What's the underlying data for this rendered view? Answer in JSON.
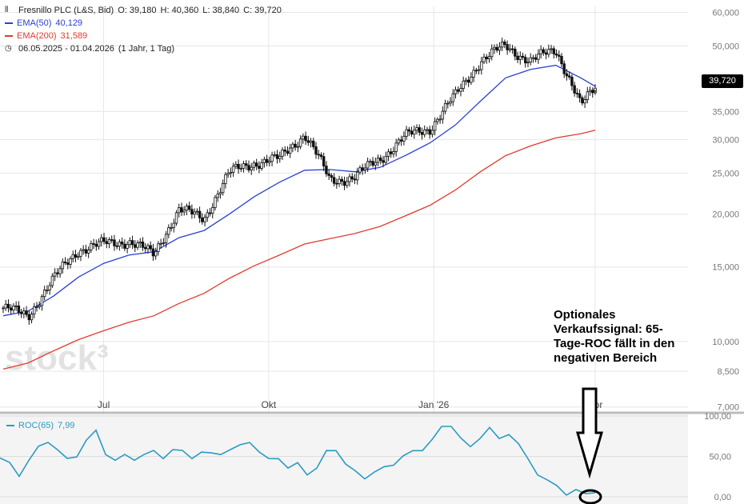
{
  "legend": {
    "instrument": "Fresnillo PLC (L&S, Bid)",
    "open": "O: 39,180",
    "high": "H: 40,360",
    "low": "L: 38,840",
    "close": "C: 39,720",
    "ema50_label": "EMA(50)",
    "ema50_value": "40,129",
    "ema200_label": "EMA(200)",
    "ema200_value": "31,589",
    "date_range": "06.05.2025 - 01.04.2026",
    "period": "(1 Jahr, 1 Tag)",
    "clock_icon": "clock-icon"
  },
  "watermark": "stock³",
  "price_tag": "39,720",
  "roc_legend": {
    "label": "ROC(65)",
    "value": "7,99"
  },
  "annotation": "Optionales Verkaufssignal: 65-Tage-ROC fällt in den negativen Bereich",
  "colors": {
    "candle": "#111111",
    "ema50": "#2a3fd6",
    "ema200": "#e23b2e",
    "roc": "#2a9bc0",
    "grid": "#e6e6e6",
    "axis_text": "#777777"
  },
  "chart_data": [
    {
      "type": "candlestick",
      "title": "Fresnillo PLC (L&S, Bid)",
      "x_range": [
        "2025-05-06",
        "2026-04-01"
      ],
      "y_scale": "log",
      "y_ticks": [
        "7,000",
        "8,500",
        "10,000",
        "15,000",
        "20,000",
        "25,000",
        "30,000",
        "35,000",
        "50,000",
        "60,000"
      ],
      "x_ticks": [
        "Jul",
        "Okt",
        "Jan '26",
        "Apr"
      ],
      "ohlc_last": {
        "open": 39.18,
        "high": 40.36,
        "low": 38.84,
        "close": 39.72
      },
      "close_approx": {
        "dates": [
          "2025-05-06",
          "2025-05-20",
          "2025-06-03",
          "2025-06-17",
          "2025-07-01",
          "2025-07-15",
          "2025-07-29",
          "2025-08-12",
          "2025-08-26",
          "2025-09-09",
          "2025-09-23",
          "2025-10-07",
          "2025-10-21",
          "2025-11-04",
          "2025-11-18",
          "2025-12-02",
          "2025-12-16",
          "2025-12-30",
          "2026-01-13",
          "2026-01-27",
          "2026-02-10",
          "2026-02-24",
          "2026-03-10",
          "2026-03-24",
          "2026-04-01"
        ],
        "values": [
          12.0,
          11.5,
          14.0,
          16.5,
          17.0,
          17.3,
          16.0,
          20.5,
          19.5,
          25.0,
          26.5,
          27.0,
          31.0,
          24.0,
          24.5,
          27.0,
          30.5,
          32.0,
          38.0,
          46.0,
          50.0,
          46.0,
          49.0,
          36.0,
          39.7
        ]
      },
      "series": [
        {
          "name": "EMA(50)",
          "last": 40.129,
          "values": [
            11.5,
            11.8,
            12.8,
            14.2,
            15.3,
            16.0,
            16.3,
            17.6,
            18.3,
            20.0,
            22.0,
            23.8,
            25.4,
            25.5,
            25.2,
            25.8,
            27.5,
            29.5,
            32.5,
            37.0,
            42.0,
            44.0,
            45.0,
            42.0,
            40.13
          ]
        },
        {
          "name": "EMA(200)",
          "last": 31.589,
          "values": [
            8.6,
            8.9,
            9.5,
            10.1,
            10.6,
            11.1,
            11.5,
            12.3,
            13.0,
            14.1,
            15.1,
            16.0,
            17.0,
            17.5,
            18.0,
            18.7,
            19.8,
            21.0,
            22.8,
            25.2,
            27.5,
            29.0,
            30.3,
            31.0,
            31.59
          ]
        }
      ]
    },
    {
      "type": "line",
      "title": "ROC(65)",
      "y_ticks": [
        "0,00",
        "50,00",
        "100,00"
      ],
      "series": [
        {
          "name": "ROC(65)",
          "last": 7.99,
          "values": [
            48,
            40,
            28,
            45,
            60,
            70,
            58,
            45,
            52,
            70,
            80,
            55,
            45,
            50,
            48,
            52,
            55,
            50,
            58,
            55,
            50,
            55,
            52,
            55,
            58,
            62,
            70,
            55,
            45,
            50,
            35,
            40,
            30,
            35,
            55,
            60,
            40,
            30,
            25,
            30,
            35,
            42,
            50,
            55,
            60,
            70,
            85,
            90,
            72,
            60,
            75,
            85,
            70,
            80,
            65,
            45,
            30,
            20,
            12,
            5,
            8,
            2,
            7.99
          ]
        }
      ]
    }
  ]
}
